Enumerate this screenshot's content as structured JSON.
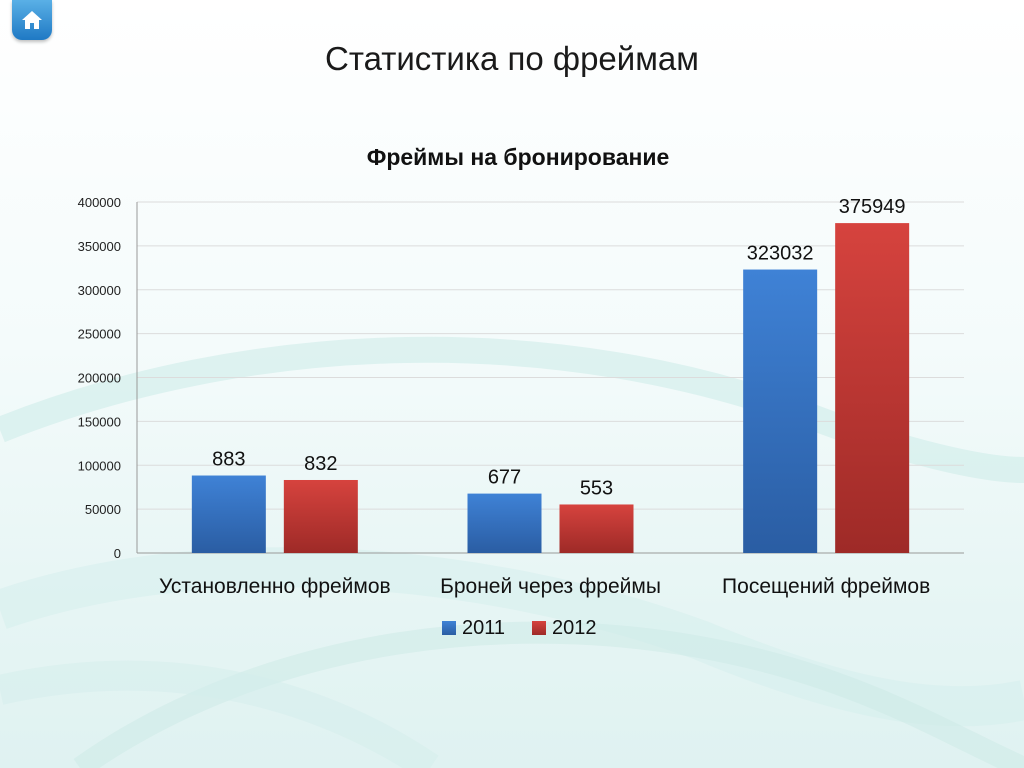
{
  "slide": {
    "title": "Статистика по фреймам"
  },
  "icons": {
    "home": "home-icon"
  },
  "colors": {
    "series_2011": "#3a78c9",
    "series_2012": "#c93a36",
    "home_button": "#2b87d1"
  },
  "chart_data": {
    "type": "bar",
    "title": "Фреймы на бронирование",
    "xlabel": "",
    "ylabel": "",
    "categories": [
      "Установленно фреймов",
      "Броней через фреймы",
      "Посещений фреймов"
    ],
    "series": [
      {
        "name": "2011",
        "values": [
          883,
          677,
          323032
        ],
        "bar_heights": [
          88300,
          67700,
          323032
        ],
        "labels": [
          "883",
          "677",
          "323032"
        ],
        "color": "#3a78c9"
      },
      {
        "name": "2012",
        "values": [
          832,
          553,
          375949
        ],
        "bar_heights": [
          83200,
          55300,
          375949
        ],
        "labels": [
          "832",
          "553",
          "375949"
        ],
        "color": "#c93a36"
      }
    ],
    "ylim": [
      0,
      400000
    ],
    "yticks": [
      "0",
      "50000",
      "100000",
      "150000",
      "200000",
      "250000",
      "300000",
      "350000",
      "400000"
    ],
    "grid": true,
    "legend": "bottom"
  }
}
